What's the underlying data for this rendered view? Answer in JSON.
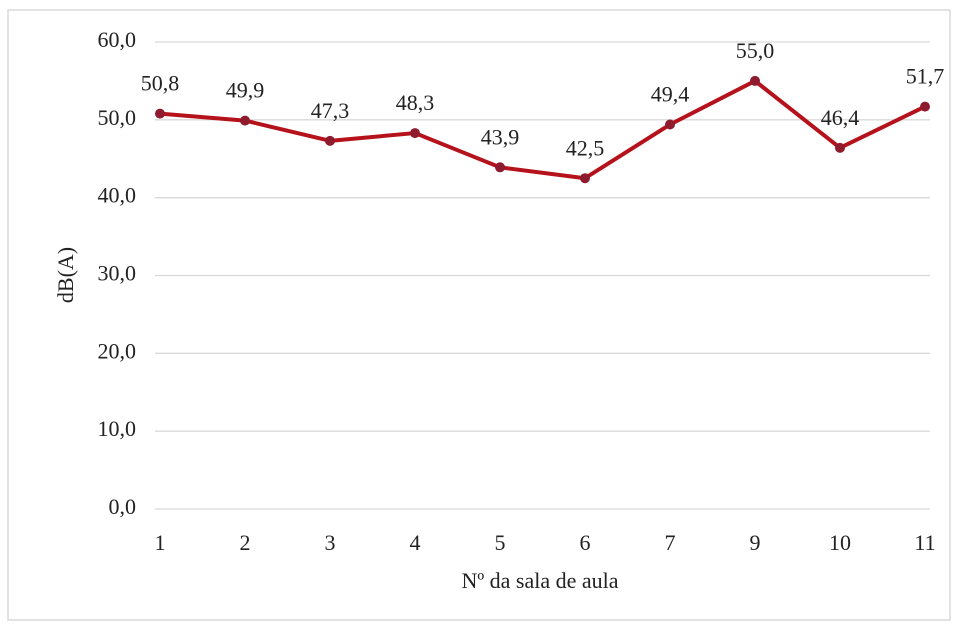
{
  "chart_data": {
    "type": "line",
    "x_label": "Nº da sala de aula",
    "y_label": "dB(A)",
    "categories": [
      "1",
      "2",
      "3",
      "4",
      "5",
      "6",
      "7",
      "9",
      "10",
      "11"
    ],
    "values": [
      50.8,
      49.9,
      47.3,
      48.3,
      43.9,
      42.5,
      49.4,
      55.0,
      46.4,
      51.7
    ],
    "value_labels": [
      "50,8",
      "49,9",
      "47,3",
      "48,3",
      "43,9",
      "42,5",
      "49,4",
      "55,0",
      "46,4",
      "51,7"
    ],
    "color": "#b5121b",
    "marker_color": "#8e1b2e",
    "ylim": [
      0,
      60
    ],
    "yticks": [
      {
        "value": 0,
        "label": "0,0"
      },
      {
        "value": 10,
        "label": "10,0"
      },
      {
        "value": 20,
        "label": "20,0"
      },
      {
        "value": 30,
        "label": "30,0"
      },
      {
        "value": 40,
        "label": "40,0"
      },
      {
        "value": 50,
        "label": "50,0"
      },
      {
        "value": 60,
        "label": "60,0"
      }
    ],
    "grid": true
  }
}
